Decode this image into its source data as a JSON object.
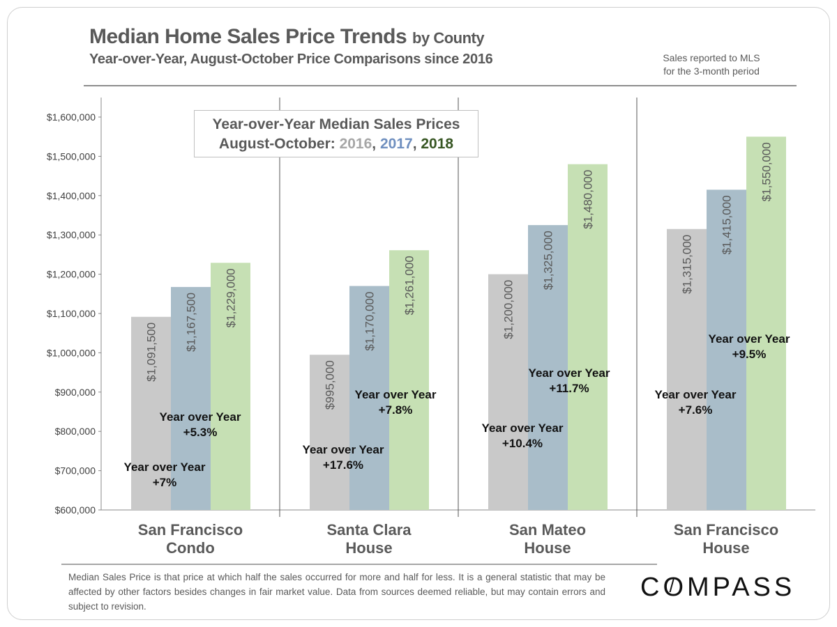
{
  "header": {
    "title": "Median Home Sales Price Trends",
    "title_suffix": "by County",
    "subtitle": "Year-over-Year, August-October Price Comparisons since 2016",
    "note_line1": "Sales reported to MLS",
    "note_line2": "for the 3-month period"
  },
  "legend": {
    "line1": "Year-over-Year Median Sales Prices",
    "prefix": "August-October: ",
    "y2016": "2016",
    "y2017": "2017",
    "y2018": "2018",
    "sep": ", "
  },
  "chart_data": {
    "type": "bar",
    "categories": [
      [
        "San Francisco",
        "Condo"
      ],
      [
        "Santa Clara",
        "House"
      ],
      [
        "San Mateo",
        "House"
      ],
      [
        "San Francisco",
        "House"
      ]
    ],
    "series": [
      {
        "name": "2016",
        "color": "#c9c9c9",
        "values": [
          1091500,
          995000,
          1200000,
          1315000
        ],
        "labels": [
          "$1,091,500",
          "$995,000",
          "$1,200,000",
          "$1,315,000"
        ]
      },
      {
        "name": "2017",
        "color": "#a9bdc9",
        "values": [
          1167500,
          1170000,
          1325000,
          1415000
        ],
        "labels": [
          "$1,167,500",
          "$1,170,000",
          "$1,325,000",
          "$1,415,000"
        ]
      },
      {
        "name": "2018",
        "color": "#c6e0b4",
        "values": [
          1229000,
          1261000,
          1480000,
          1550000
        ],
        "labels": [
          "$1,229,000",
          "$1,261,000",
          "$1,480,000",
          "$1,550,000"
        ]
      }
    ],
    "ylim": [
      600000,
      1600000
    ],
    "yticks": [
      "$600,000",
      "$700,000",
      "$800,000",
      "$900,000",
      "$1,000,000",
      "$1,100,000",
      "$1,200,000",
      "$1,300,000",
      "$1,400,000",
      "$1,500,000",
      "$1,600,000"
    ],
    "annotations": [
      {
        "line1": "Year over Year",
        "line2": "+7%"
      },
      {
        "line1": "Year over Year",
        "line2": "+5.3%"
      },
      {
        "line1": "Year over Year",
        "line2": "+17.6%"
      },
      {
        "line1": "Year over Year",
        "line2": "+7.8%"
      },
      {
        "line1": "Year over Year",
        "line2": "+10.4%"
      },
      {
        "line1": "Year over Year",
        "line2": "+11.7%"
      },
      {
        "line1": "Year over Year",
        "line2": "+7.6%"
      },
      {
        "line1": "Year over Year",
        "line2": "+9.5%"
      }
    ],
    "grid": false
  },
  "footer": {
    "text": "Median Sales Price is that price at which half the sales occurred for more and half for less. It is a general statistic that may be affected by other factors besides changes in fair market value. Data from sources deemed reliable, but may contain errors and subject to revision.",
    "logo": "COMPASS"
  }
}
